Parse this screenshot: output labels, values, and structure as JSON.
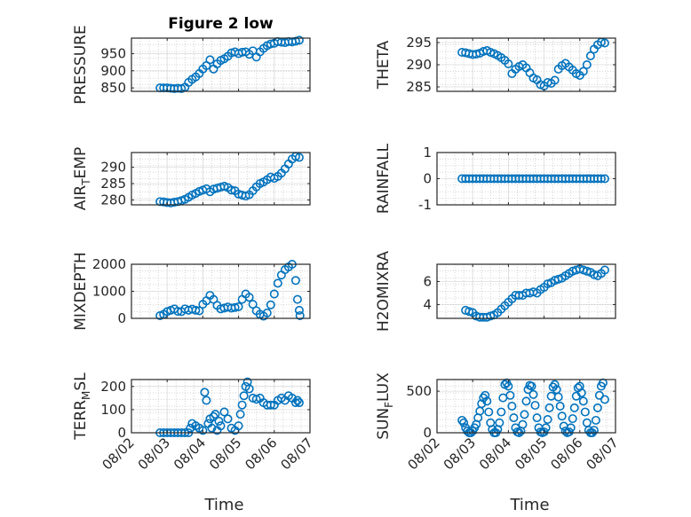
{
  "chart_data": {
    "type": "scatter",
    "title": "Figure 2 low",
    "xlabel": "Time",
    "x_tick_labels": [
      "08/02",
      "08/03",
      "08/04",
      "08/05",
      "08/06",
      "08/07"
    ],
    "x_tick_values": [
      0,
      1,
      2,
      3,
      4,
      5
    ],
    "xlim": [
      0,
      5
    ],
    "marker": "open-circle",
    "color": "#0072BD",
    "grid": true,
    "subplots": [
      {
        "id": "pressure",
        "ylabel": "PRESSURE",
        "ylim": [
          840,
          995
        ],
        "yticks": [
          850,
          900,
          950
        ],
        "ytick_labels": [
          "850",
          "900",
          "950"
        ],
        "x": [
          0.8,
          0.9,
          1.0,
          1.1,
          1.2,
          1.3,
          1.4,
          1.5,
          1.6,
          1.7,
          1.8,
          1.9,
          2.0,
          2.1,
          2.2,
          2.3,
          2.4,
          2.5,
          2.6,
          2.7,
          2.8,
          2.9,
          3.0,
          3.1,
          3.2,
          3.3,
          3.4,
          3.5,
          3.6,
          3.7,
          3.8,
          3.9,
          4.0,
          4.1,
          4.2,
          4.3,
          4.4,
          4.5,
          4.6,
          4.7
        ],
        "y": [
          850,
          850,
          850,
          849,
          848,
          849,
          848,
          852,
          866,
          875,
          882,
          892,
          905,
          915,
          932,
          905,
          920,
          930,
          935,
          942,
          952,
          955,
          950,
          954,
          955,
          948,
          958,
          940,
          955,
          965,
          973,
          978,
          980,
          985,
          983,
          982,
          985,
          984,
          986,
          989
        ]
      },
      {
        "id": "theta",
        "ylabel": "THETA",
        "ylim": [
          284,
          296
        ],
        "yticks": [
          285,
          290,
          295
        ],
        "ytick_labels": [
          "285",
          "290",
          "295"
        ],
        "x": [
          0.7,
          0.8,
          0.9,
          1.0,
          1.1,
          1.2,
          1.3,
          1.4,
          1.5,
          1.6,
          1.7,
          1.8,
          1.9,
          2.0,
          2.1,
          2.2,
          2.3,
          2.4,
          2.5,
          2.6,
          2.7,
          2.8,
          2.9,
          3.0,
          3.1,
          3.2,
          3.3,
          3.4,
          3.5,
          3.6,
          3.7,
          3.8,
          3.9,
          4.0,
          4.1,
          4.2,
          4.3,
          4.4,
          4.5,
          4.6,
          4.7
        ],
        "y": [
          292.8,
          292.7,
          292.5,
          292.3,
          292.4,
          292.6,
          293.0,
          293.2,
          292.8,
          292.5,
          292.1,
          291.6,
          291.0,
          290.2,
          288.0,
          289.0,
          289.6,
          290.0,
          289.3,
          288.2,
          287.0,
          286.6,
          285.5,
          285.2,
          286.0,
          285.8,
          286.5,
          289.0,
          289.8,
          290.3,
          289.5,
          288.8,
          288.0,
          287.6,
          288.5,
          290.0,
          292.0,
          293.5,
          294.5,
          295.1,
          294.9
        ]
      },
      {
        "id": "air_temp",
        "ylabel": "AIR_TEMP",
        "ylim": [
          278.5,
          294.5
        ],
        "yticks": [
          280,
          285,
          290
        ],
        "ytick_labels": [
          "280",
          "285",
          "290"
        ],
        "x": [
          0.8,
          0.9,
          1.0,
          1.1,
          1.2,
          1.3,
          1.4,
          1.5,
          1.6,
          1.7,
          1.8,
          1.9,
          2.0,
          2.1,
          2.2,
          2.3,
          2.4,
          2.5,
          2.6,
          2.7,
          2.8,
          2.9,
          3.0,
          3.1,
          3.2,
          3.3,
          3.4,
          3.5,
          3.6,
          3.7,
          3.8,
          3.9,
          4.0,
          4.1,
          4.2,
          4.3,
          4.4,
          4.5,
          4.6,
          4.7
        ],
        "y": [
          279.5,
          279.4,
          279.2,
          279.1,
          279.3,
          279.5,
          279.8,
          280.2,
          280.8,
          281.5,
          282.0,
          282.6,
          283.0,
          283.4,
          282.5,
          283.3,
          283.6,
          283.9,
          284.2,
          283.8,
          283.0,
          282.8,
          281.8,
          281.5,
          281.2,
          281.6,
          282.8,
          284.0,
          285.0,
          285.5,
          286.2,
          287.0,
          286.6,
          287.2,
          288.2,
          289.5,
          291.0,
          292.5,
          293.3,
          293.0
        ]
      },
      {
        "id": "rainfall",
        "ylabel": "RAINFALL",
        "ylim": [
          -1,
          1
        ],
        "yticks": [
          -1,
          0,
          1
        ],
        "ytick_labels": [
          "-1",
          "0",
          "1"
        ],
        "x": [
          0.7,
          0.8,
          0.9,
          1.0,
          1.1,
          1.2,
          1.3,
          1.4,
          1.5,
          1.6,
          1.7,
          1.8,
          1.9,
          2.0,
          2.1,
          2.2,
          2.3,
          2.4,
          2.5,
          2.6,
          2.7,
          2.8,
          2.9,
          3.0,
          3.1,
          3.2,
          3.3,
          3.4,
          3.5,
          3.6,
          3.7,
          3.8,
          3.9,
          4.0,
          4.1,
          4.2,
          4.3,
          4.4,
          4.5,
          4.6,
          4.7
        ],
        "y": [
          0,
          0,
          0,
          0,
          0,
          0,
          0,
          0,
          0,
          0,
          0,
          0,
          0,
          0,
          0,
          0,
          0,
          0,
          0,
          0,
          0,
          0,
          0,
          0,
          0,
          0,
          0,
          0,
          0,
          0,
          0,
          0,
          0,
          0,
          0,
          0,
          0,
          0,
          0,
          0,
          0
        ]
      },
      {
        "id": "mixdepth",
        "ylabel": "MIXDEPTH",
        "ylim": [
          0,
          2000
        ],
        "yticks": [
          0,
          1000,
          2000
        ],
        "ytick_labels": [
          "0",
          "1000",
          "2000"
        ],
        "x": [
          0.8,
          0.9,
          1.0,
          1.1,
          1.2,
          1.3,
          1.4,
          1.5,
          1.6,
          1.7,
          1.8,
          1.9,
          2.0,
          2.1,
          2.2,
          2.3,
          2.4,
          2.5,
          2.6,
          2.7,
          2.8,
          2.9,
          3.0,
          3.1,
          3.2,
          3.3,
          3.4,
          3.5,
          3.6,
          3.7,
          3.8,
          3.9,
          4.0,
          4.1,
          4.2,
          4.3,
          4.4,
          4.5,
          4.6,
          4.65,
          4.7,
          4.72
        ],
        "y": [
          100,
          150,
          250,
          300,
          350,
          260,
          250,
          350,
          300,
          340,
          300,
          280,
          520,
          650,
          850,
          700,
          480,
          350,
          380,
          420,
          380,
          400,
          430,
          700,
          900,
          780,
          520,
          280,
          150,
          80,
          200,
          500,
          900,
          1300,
          1600,
          1800,
          1900,
          2000,
          1400,
          700,
          300,
          100
        ]
      },
      {
        "id": "h2omixra",
        "ylabel": "H2OMIXRA",
        "ylim": [
          2.8,
          7.5
        ],
        "yticks": [
          4,
          6
        ],
        "ytick_labels": [
          "4",
          "6"
        ],
        "x": [
          0.8,
          0.9,
          1.0,
          1.1,
          1.2,
          1.3,
          1.4,
          1.5,
          1.6,
          1.7,
          1.8,
          1.9,
          2.0,
          2.1,
          2.2,
          2.3,
          2.4,
          2.5,
          2.6,
          2.7,
          2.8,
          2.9,
          3.0,
          3.1,
          3.2,
          3.3,
          3.4,
          3.5,
          3.6,
          3.7,
          3.8,
          3.9,
          4.0,
          4.1,
          4.2,
          4.3,
          4.4,
          4.5,
          4.6,
          4.7
        ],
        "y": [
          3.5,
          3.4,
          3.3,
          3.0,
          2.9,
          2.9,
          2.9,
          3.0,
          3.1,
          3.3,
          3.6,
          3.9,
          4.2,
          4.5,
          4.8,
          4.8,
          4.8,
          5.0,
          5.0,
          5.1,
          5.0,
          5.3,
          5.5,
          5.8,
          5.9,
          6.1,
          6.2,
          6.3,
          6.5,
          6.7,
          6.9,
          7.0,
          7.1,
          7.0,
          6.9,
          6.8,
          6.6,
          6.5,
          6.7,
          7.0
        ]
      },
      {
        "id": "terr_msl",
        "ylabel": "TERR_MSL",
        "ylim": [
          0,
          230
        ],
        "yticks": [
          0,
          100,
          200
        ],
        "ytick_labels": [
          "0",
          "100",
          "200"
        ],
        "x": [
          0.8,
          0.9,
          1.0,
          1.1,
          1.2,
          1.3,
          1.4,
          1.5,
          1.6,
          1.65,
          1.7,
          1.8,
          1.9,
          2.0,
          2.05,
          2.1,
          2.15,
          2.2,
          2.25,
          2.3,
          2.35,
          2.4,
          2.45,
          2.5,
          2.6,
          2.7,
          2.8,
          2.9,
          3.0,
          3.05,
          3.1,
          3.15,
          3.2,
          3.25,
          3.3,
          3.4,
          3.5,
          3.6,
          3.7,
          3.8,
          3.9,
          4.0,
          4.1,
          4.2,
          4.3,
          4.4,
          4.5,
          4.6,
          4.65,
          4.7
        ],
        "y": [
          0,
          0,
          0,
          0,
          0,
          0,
          0,
          0,
          0,
          20,
          40,
          30,
          20,
          10,
          175,
          140,
          40,
          60,
          20,
          70,
          80,
          10,
          50,
          30,
          90,
          60,
          20,
          10,
          30,
          80,
          120,
          160,
          200,
          220,
          190,
          150,
          145,
          150,
          130,
          120,
          120,
          120,
          140,
          150,
          140,
          160,
          150,
          130,
          140,
          130
        ]
      },
      {
        "id": "sun_flux",
        "ylabel": "SUN_FLUX",
        "ylim": [
          0,
          640
        ],
        "yticks": [
          0,
          500
        ],
        "ytick_labels": [
          "0",
          "500"
        ],
        "x": [
          0.7,
          0.75,
          0.8,
          0.85,
          0.9,
          0.95,
          1.0,
          1.05,
          1.1,
          1.15,
          1.2,
          1.25,
          1.3,
          1.35,
          1.4,
          1.45,
          1.5,
          1.55,
          1.6,
          1.65,
          1.7,
          1.75,
          1.8,
          1.85,
          1.9,
          1.95,
          2.0,
          2.05,
          2.1,
          2.15,
          2.2,
          2.25,
          2.3,
          2.35,
          2.4,
          2.45,
          2.5,
          2.55,
          2.6,
          2.65,
          2.7,
          2.75,
          2.8,
          2.85,
          2.9,
          2.95,
          3.0,
          3.05,
          3.1,
          3.15,
          3.2,
          3.25,
          3.3,
          3.35,
          3.4,
          3.45,
          3.5,
          3.55,
          3.6,
          3.65,
          3.7,
          3.75,
          3.8,
          3.85,
          3.9,
          3.95,
          4.0,
          4.05,
          4.1,
          4.15,
          4.2,
          4.25,
          4.3,
          4.35,
          4.4,
          4.45,
          4.5,
          4.55,
          4.6,
          4.65,
          4.7
        ],
        "y": [
          150,
          120,
          60,
          20,
          0,
          0,
          20,
          60,
          100,
          180,
          260,
          350,
          420,
          450,
          380,
          250,
          120,
          40,
          0,
          0,
          40,
          120,
          250,
          420,
          580,
          600,
          560,
          450,
          320,
          180,
          60,
          10,
          0,
          20,
          100,
          220,
          380,
          520,
          570,
          560,
          460,
          330,
          180,
          60,
          10,
          0,
          10,
          60,
          160,
          300,
          440,
          550,
          580,
          520,
          430,
          320,
          200,
          80,
          20,
          0,
          10,
          60,
          170,
          300,
          440,
          540,
          560,
          480,
          380,
          250,
          120,
          30,
          0,
          0,
          30,
          150,
          300,
          450,
          560,
          600,
          400
        ]
      }
    ]
  }
}
